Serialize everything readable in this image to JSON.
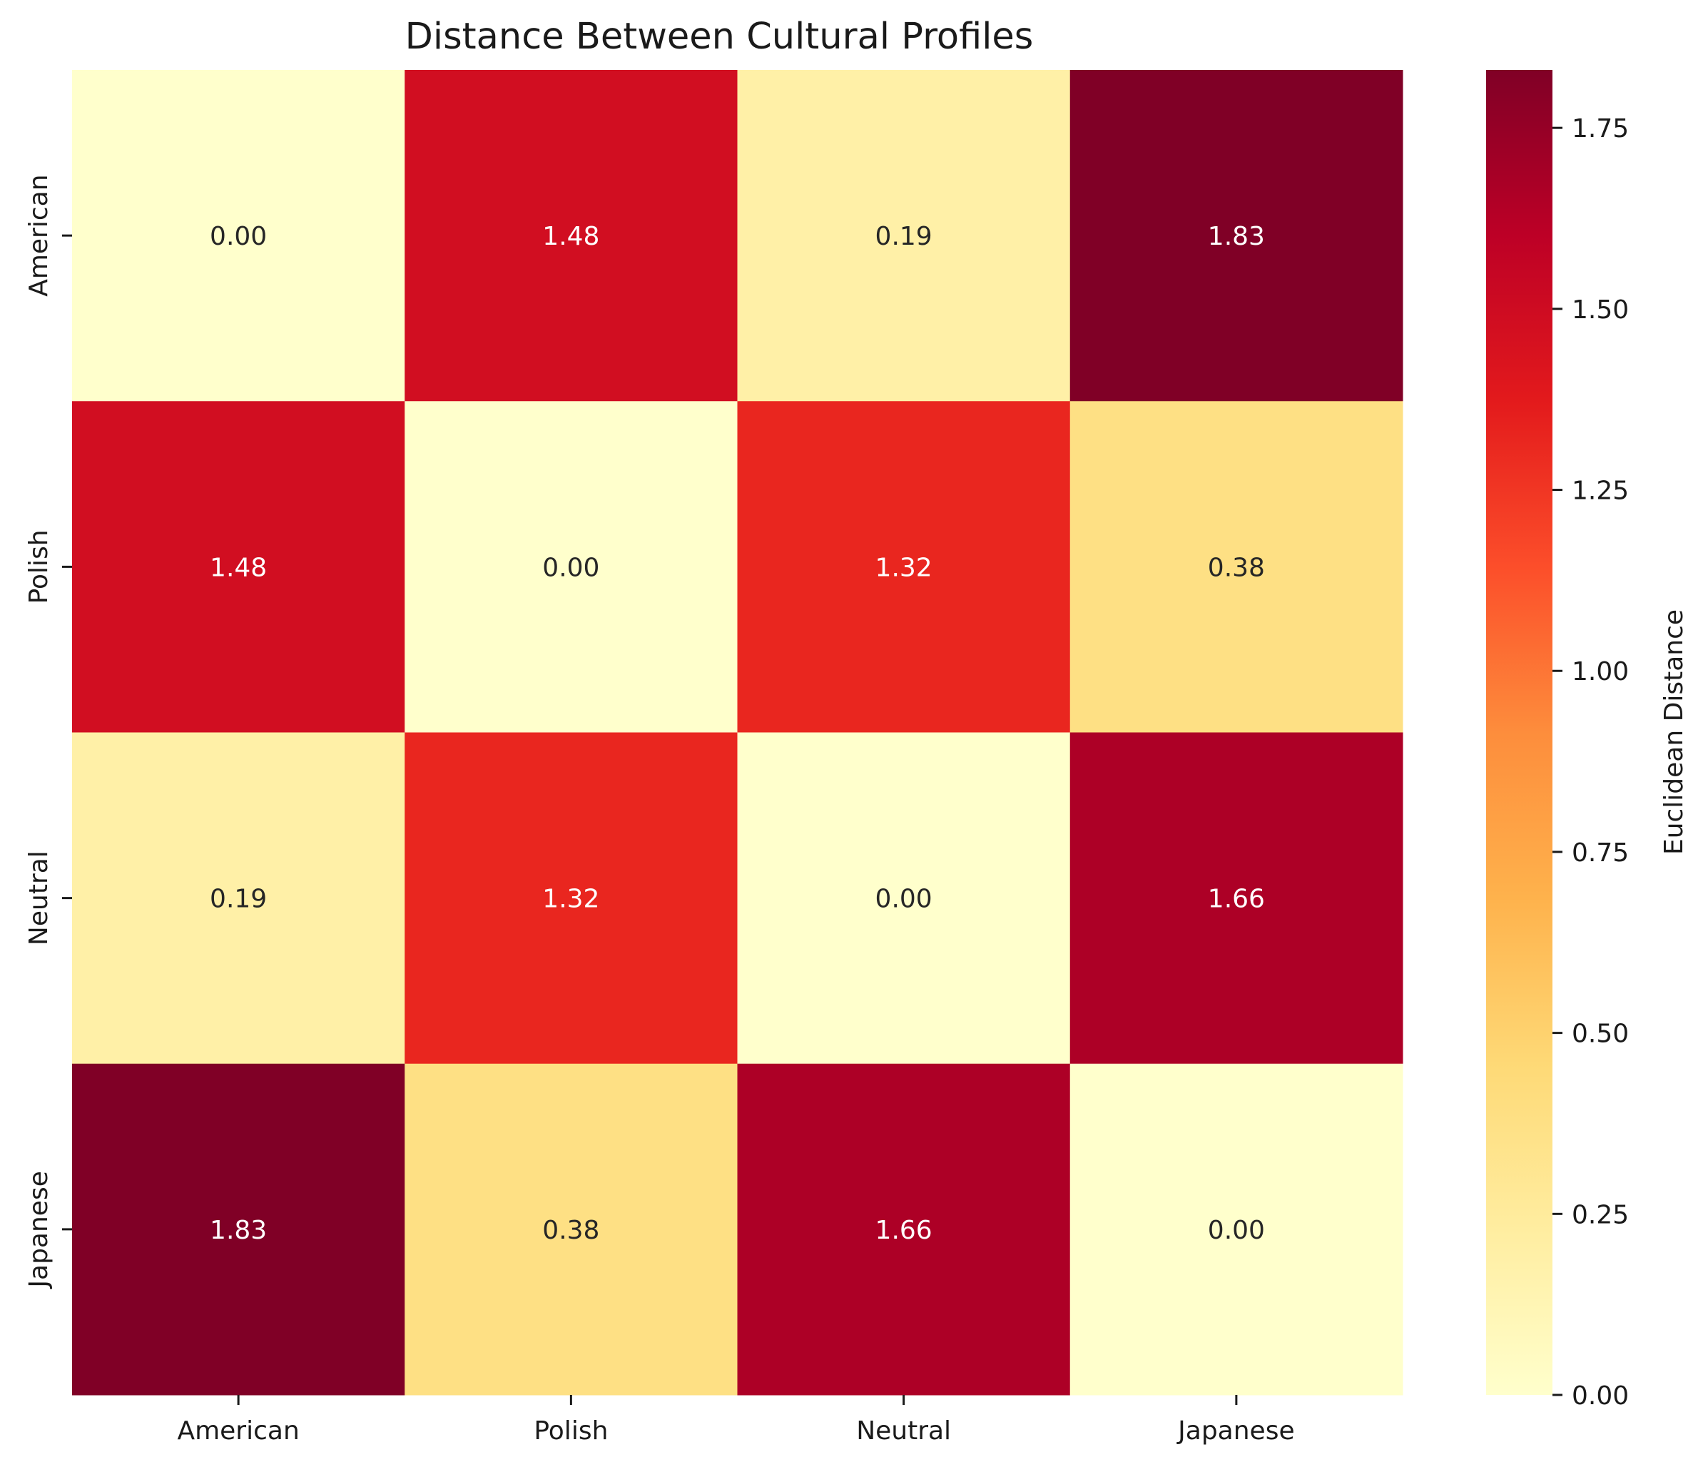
{
  "chart_data": {
    "type": "heatmap",
    "title": "Distance Between Cultural Profiles",
    "rows": [
      "American",
      "Polish",
      "Neutral",
      "Japanese"
    ],
    "columns": [
      "American",
      "Polish",
      "Neutral",
      "Japanese"
    ],
    "values": [
      [
        0.0,
        1.48,
        0.19,
        1.83
      ],
      [
        1.48,
        0.0,
        1.32,
        0.38
      ],
      [
        0.19,
        1.32,
        0.0,
        1.66
      ],
      [
        1.83,
        0.38,
        1.66,
        0.0
      ]
    ],
    "annotations": [
      [
        "0.00",
        "1.48",
        "0.19",
        "1.83"
      ],
      [
        "1.48",
        "0.00",
        "1.32",
        "0.38"
      ],
      [
        "0.19",
        "1.32",
        "0.00",
        "1.66"
      ],
      [
        "1.83",
        "0.38",
        "1.66",
        "0.00"
      ]
    ],
    "colorbar": {
      "label": "Euclidean Distance",
      "range": [
        0,
        1.83
      ],
      "ticks": [
        0.0,
        0.25,
        0.5,
        0.75,
        1.0,
        1.25,
        1.5,
        1.75
      ],
      "tick_labels": [
        "0.00",
        "0.25",
        "0.50",
        "0.75",
        "1.00",
        "1.25",
        "1.50",
        "1.75"
      ],
      "colormap": "YlOrRd"
    },
    "colormap_stops": [
      "#ffffcc",
      "#ffeda0",
      "#fed976",
      "#feb24c",
      "#fd8d3c",
      "#fc4e2a",
      "#e31a1c",
      "#bd0026",
      "#800026"
    ],
    "annotation_colors": {
      "dark": "#262626",
      "light": "#ffffff"
    }
  }
}
